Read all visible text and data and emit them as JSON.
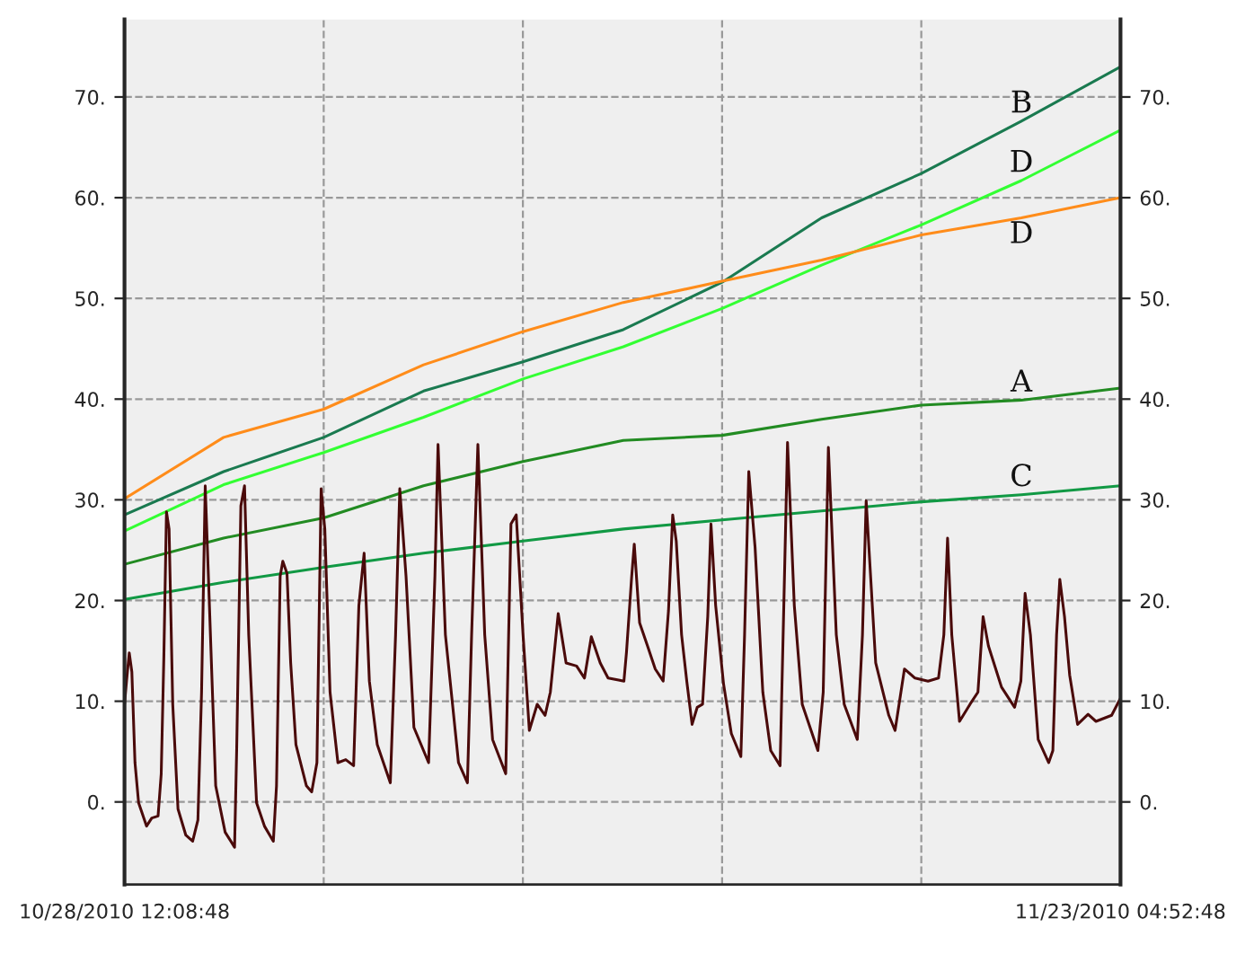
{
  "chart_data": {
    "type": "line",
    "x": [
      "2010-10-28T12:08:48",
      "2010-10-31T01:30",
      "2010-11-02T15:29:36",
      "2010-11-05T05:18",
      "2010-11-07T18:50:24",
      "2010-11-10T09:00",
      "2010-11-12T22:11:12",
      "2010-11-15T11:48",
      "2010-11-18T01:32:00",
      "2010-11-20T15:30",
      "2010-11-23T04:52:48"
    ],
    "series": [
      {
        "name": "B",
        "color": "#1a7a50",
        "values": [
          28.5,
          32.8,
          36.2,
          40.8,
          43.7,
          46.9,
          51.6,
          58.0,
          62.4,
          67.6,
          73.0
        ]
      },
      {
        "name": "D",
        "color": "#33ff33",
        "values": [
          26.9,
          31.5,
          34.7,
          38.2,
          42.0,
          45.2,
          49.0,
          53.3,
          57.3,
          61.7,
          66.7
        ]
      },
      {
        "name": "D",
        "color": "#ff8c1a",
        "values": [
          30.1,
          36.2,
          39.0,
          43.4,
          46.7,
          49.6,
          51.7,
          53.8,
          56.3,
          58.0,
          60.0
        ]
      },
      {
        "name": "A",
        "color": "#228b22",
        "values": [
          23.6,
          26.2,
          28.2,
          31.4,
          33.8,
          35.9,
          36.4,
          38.0,
          39.4,
          39.9,
          41.1
        ]
      },
      {
        "name": "C",
        "color": "#119944",
        "values": [
          20.1,
          21.8,
          23.3,
          24.7,
          25.9,
          27.1,
          28.0,
          28.9,
          29.8,
          30.5,
          31.4
        ]
      },
      {
        "color": "#4a0a0a",
        "x": [
          "2010-10-28T12:08:48",
          "2010-10-28T13:24",
          "2010-10-28T15:05",
          "2010-10-28T16:42",
          "2010-10-28T18:38",
          "2010-10-28T20:54",
          "2010-10-29T01:47",
          "2010-10-29T05:02",
          "2010-10-29T08:56",
          "2010-10-29T10:53",
          "2010-10-29T12:30",
          "2010-10-29T14:08",
          "2010-10-29T15:45",
          "2010-10-29T18:01",
          "2010-10-29T21:16",
          "2010-10-30T02:08",
          "2010-10-30T06:21",
          "2010-10-30T09:36",
          "2010-10-30T11:52",
          "2010-10-30T14:08",
          "2010-10-30T16:44",
          "2010-10-30T20:37",
          "2010-10-31T02:28",
          "2010-10-31T08:18",
          "2010-10-31T09:36",
          "2010-10-31T12:12",
          "2010-10-31T14:28",
          "2010-10-31T17:04",
          "2010-10-31T21:56",
          "2010-11-01T02:48",
          "2010-11-01T08:19",
          "2010-11-01T10:16",
          "2010-11-01T12:32",
          "2010-11-01T14:10",
          "2010-11-01T16:46",
          "2010-11-01T19:03",
          "2010-11-01T22:18",
          "2010-11-02T04:48",
          "2010-11-02T08:03",
          "2010-11-02T11:18",
          "2010-11-02T13:54",
          "2010-11-02T16:11",
          "2010-11-02T19:25",
          "2010-11-03T00:17",
          "2010-11-03T05:09",
          "2010-11-03T10:01",
          "2010-11-03T13:16",
          "2010-11-03T16:31",
          "2010-11-03T19:46",
          "2010-11-04T00:38",
          "2010-11-04T08:45",
          "2010-11-04T12:00",
          "2010-11-04T14:36",
          "2010-11-04T18:29",
          "2010-11-04T23:21",
          "2010-11-05T08:27",
          "2010-11-05T12:21",
          "2010-11-05T14:18",
          "2010-11-05T18:51",
          "2010-11-06T02:58",
          "2010-11-06T08:29",
          "2010-11-06T11:05",
          "2010-11-06T14:58",
          "2010-11-06T19:12",
          "2010-11-07T00:04",
          "2010-11-07T08:12",
          "2010-11-07T11:27",
          "2010-11-07T14:42",
          "2010-11-07T18:56",
          "2010-11-07T22:50",
          "2010-11-08T03:42",
          "2010-11-08T08:35",
          "2010-11-08T11:50",
          "2010-11-08T16:42",
          "2010-11-08T21:35",
          "2010-11-09T04:05",
          "2010-11-09T08:58",
          "2010-11-09T13:12",
          "2010-11-09T18:43",
          "2010-11-09T23:35",
          "2010-11-10T06:05",
          "2010-11-10T09:24",
          "2010-11-10T11:00",
          "2010-11-10T14:12",
          "2010-11-10T15:48",
          "2010-11-10T19:06",
          "2010-11-11T00:00",
          "2010-11-11T04:48",
          "2010-11-11T09:42",
          "2010-11-11T13:00",
          "2010-11-11T15:36",
          "2010-11-11T17:48",
          "2010-11-11T21:06",
          "2010-11-12T00:18",
          "2010-11-12T03:36",
          "2010-11-12T06:48",
          "2010-11-12T10:06",
          "2010-11-12T13:18",
          "2010-11-12T15:18",
          "2010-11-12T18:12",
          "2010-11-12T23:06",
          "2010-11-13T03:54",
          "2010-11-13T09:48",
          "2010-11-13T12:06",
          "2010-11-13T14:42",
          "2010-11-13T18:36",
          "2010-11-13T23:24",
          "2010-11-14T04:18",
          "2010-11-14T10:06",
          "2010-11-14T12:24",
          "2010-11-14T14:42",
          "2010-11-14T18:54",
          "2010-11-14T23:48",
          "2010-11-15T09:30",
          "2010-11-15T12:48",
          "2010-11-15T16:00",
          "2010-11-15T20:54",
          "2010-11-16T01:48",
          "2010-11-16T09:54",
          "2010-11-16T13:06",
          "2010-11-16T15:24",
          "2010-11-16T21:18",
          "2010-11-17T05:24",
          "2010-11-17T09:18",
          "2010-11-17T15:06",
          "2010-11-17T21:36",
          "2010-11-18T05:42",
          "2010-11-18T12:12",
          "2010-11-18T15:30",
          "2010-11-18T17:48",
          "2010-11-18T20:24",
          "2010-11-19T01:12",
          "2010-11-19T07:42",
          "2010-11-19T12:36",
          "2010-11-19T15:48",
          "2010-11-19T19:06",
          "2010-11-20T03:12",
          "2010-11-20T11:18",
          "2010-11-20T15:12",
          "2010-11-20T17:48",
          "2010-11-20T21:06",
          "2010-11-21T01:54",
          "2010-11-21T08:24",
          "2010-11-21T11:00",
          "2010-11-21T13:18",
          "2010-11-21T15:18",
          "2010-11-21T18:12",
          "2010-11-21T21:24",
          "2010-11-22T02:18",
          "2010-11-22T08:48",
          "2010-11-22T13:42",
          "2010-11-22T23:24",
          "2010-11-23T04:52"
        ],
        "values": [
          9.7,
          12.0,
          14.8,
          12.9,
          3.9,
          -0.1,
          -2.4,
          -1.6,
          -1.4,
          2.8,
          14.3,
          28.8,
          27.1,
          9.7,
          -0.7,
          -3.3,
          -3.9,
          -1.8,
          10.9,
          31.4,
          19.5,
          1.6,
          -3.0,
          -4.5,
          5.1,
          29.4,
          31.4,
          16.6,
          -0.1,
          -2.4,
          -3.9,
          1.6,
          22.4,
          23.9,
          22.7,
          13.8,
          5.7,
          1.6,
          1.0,
          3.9,
          31.1,
          27.1,
          10.9,
          3.9,
          4.2,
          3.6,
          19.5,
          24.7,
          12.0,
          5.7,
          1.9,
          16.6,
          31.1,
          22.4,
          7.4,
          3.9,
          22.4,
          35.5,
          16.6,
          3.9,
          1.9,
          16.6,
          35.5,
          16.6,
          6.2,
          2.8,
          27.6,
          28.5,
          16.6,
          7.1,
          9.7,
          8.6,
          10.9,
          18.7,
          13.8,
          13.5,
          12.3,
          16.4,
          13.8,
          12.3,
          12.1,
          12.0,
          14.9,
          22.4,
          25.6,
          17.8,
          15.5,
          13.2,
          12.0,
          19.0,
          28.5,
          25.9,
          16.6,
          12.0,
          7.7,
          9.4,
          9.7,
          18.4,
          27.6,
          19.5,
          11.7,
          6.8,
          4.5,
          16.6,
          32.8,
          25.3,
          10.9,
          5.1,
          3.6,
          19.5,
          35.7,
          19.5,
          9.7,
          5.1,
          10.9,
          35.2,
          16.6,
          9.7,
          6.2,
          16.6,
          29.9,
          13.8,
          8.6,
          7.1,
          13.2,
          12.3,
          12.0,
          12.3,
          16.6,
          26.2,
          16.6,
          8.0,
          9.7,
          10.9,
          18.4,
          15.5,
          11.4,
          9.4,
          12.0,
          20.7,
          16.6,
          6.2,
          3.9,
          5.1,
          16.6,
          22.1,
          18.4,
          12.6,
          7.7,
          8.7,
          8.0,
          8.6,
          10.3
        ]
      }
    ],
    "ylim": [
      -8.2,
      77.7
    ],
    "yticks": [
      {
        "value": 0,
        "label": "0."
      },
      {
        "value": 10,
        "label": "10."
      },
      {
        "value": 20,
        "label": "20."
      },
      {
        "value": 30,
        "label": "30."
      },
      {
        "value": 40,
        "label": "40."
      },
      {
        "value": 50,
        "label": "50."
      },
      {
        "value": 60,
        "label": "60."
      },
      {
        "value": 70,
        "label": "70."
      }
    ],
    "y2lim": [
      -8.2,
      77.7
    ],
    "y2ticks": [
      {
        "value": 0,
        "label": "0."
      },
      {
        "value": 10,
        "label": "10."
      },
      {
        "value": 20,
        "label": "20."
      },
      {
        "value": 30,
        "label": "30."
      },
      {
        "value": 40,
        "label": "40."
      },
      {
        "value": 50,
        "label": "50."
      },
      {
        "value": 60,
        "label": "60."
      },
      {
        "value": 70,
        "label": "70."
      }
    ],
    "xlim": [
      "2010-10-28T12:08:48",
      "2010-11-23T04:52:48"
    ],
    "xticks": [
      {
        "value": "2010-10-28T12:08:48",
        "label": "10/28/2010 12:08:48"
      },
      {
        "value": "2010-11-02T15:29:36",
        "label": null
      },
      {
        "value": "2010-11-07T18:50:24",
        "label": null
      },
      {
        "value": "2010-11-12T22:11:12",
        "label": null
      },
      {
        "value": "2010-11-18T01:32:00",
        "label": null
      },
      {
        "value": "2010-11-23T04:52:48",
        "label": "11/23/2010 04:52:48"
      }
    ],
    "grid": true,
    "line_style": "solid",
    "marker": "none"
  }
}
